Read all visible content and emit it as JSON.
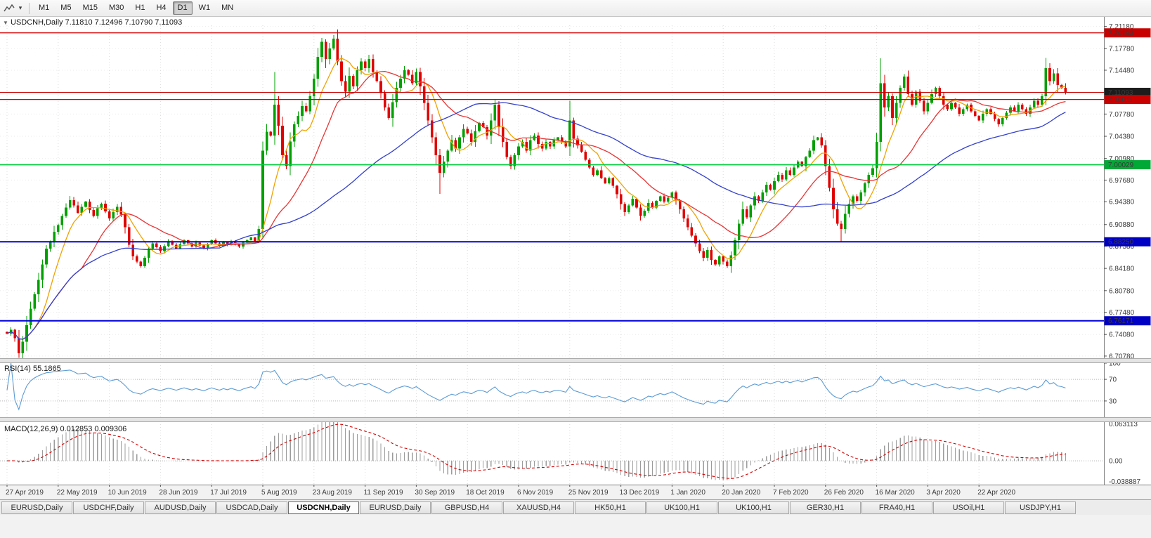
{
  "icons": {
    "expand_marker": "▼",
    "dropdown_caret": "▾"
  },
  "toolbar": {
    "timeframes": [
      "M1",
      "M5",
      "M15",
      "M30",
      "H1",
      "H4",
      "D1",
      "W1",
      "MN"
    ],
    "active_timeframe": "D1"
  },
  "chart": {
    "header_text": "USDCNH,Daily 7.11810 7.12496 7.10790 7.11093",
    "symbol": "USDCNH,Daily",
    "ohlc": {
      "open": "7.11810",
      "high": "7.12496",
      "low": "7.10790",
      "close": "7.11093"
    },
    "rsi_label_text": "RSI(14) 55.1865",
    "macd_label_text": "MACD(12,26,9) 0.012853 0.009306"
  },
  "chart_data": {
    "type": "candlestick",
    "symbol": "USDCNH",
    "timeframe": "Daily",
    "price_range": [
      6.7045,
      7.2135
    ],
    "first_open": 6.745,
    "closes": [
      6.742,
      6.748,
      6.735,
      6.712,
      6.73,
      6.755,
      6.78,
      6.802,
      6.824,
      6.848,
      6.872,
      6.882,
      6.898,
      6.908,
      6.922,
      6.935,
      6.946,
      6.938,
      6.927,
      6.936,
      6.944,
      6.931,
      6.922,
      6.934,
      6.941,
      6.929,
      6.918,
      6.928,
      6.936,
      6.924,
      6.905,
      6.878,
      6.86,
      6.852,
      6.845,
      6.858,
      6.872,
      6.88,
      6.874,
      6.868,
      6.876,
      6.883,
      6.878,
      6.872,
      6.879,
      6.885,
      6.88,
      6.875,
      6.881,
      6.877,
      6.872,
      6.879,
      6.885,
      6.88,
      6.876,
      6.882,
      6.878,
      6.883,
      6.879,
      6.875,
      6.881,
      6.885,
      6.889,
      6.884,
      6.902,
      7.022,
      7.051,
      7.045,
      7.092,
      7.06,
      7.015,
      6.998,
      7.036,
      7.062,
      7.075,
      7.09,
      7.082,
      7.105,
      7.132,
      7.165,
      7.188,
      7.162,
      7.178,
      7.193,
      7.158,
      7.128,
      7.112,
      7.136,
      7.12,
      7.145,
      7.158,
      7.148,
      7.162,
      7.142,
      7.128,
      7.11,
      7.088,
      7.072,
      7.096,
      7.118,
      7.132,
      7.145,
      7.138,
      7.125,
      7.142,
      7.12,
      7.095,
      7.068,
      7.042,
      7.015,
      6.988,
      7.005,
      7.022,
      7.038,
      7.025,
      7.042,
      7.055,
      7.048,
      7.035,
      7.052,
      7.064,
      7.058,
      7.045,
      7.068,
      7.092,
      7.058,
      7.035,
      7.012,
      6.998,
      7.015,
      7.028,
      7.035,
      7.022,
      7.038,
      7.045,
      7.032,
      7.025,
      7.035,
      7.028,
      7.038,
      7.042,
      7.035,
      7.028,
      7.068,
      7.04,
      7.03,
      7.02,
      7.008,
      6.996,
      6.985,
      6.992,
      6.98,
      6.972,
      6.98,
      6.968,
      6.955,
      6.94,
      6.928,
      6.938,
      6.948,
      6.935,
      6.922,
      6.93,
      6.942,
      6.935,
      6.945,
      6.952,
      6.944,
      6.95,
      6.958,
      6.946,
      6.932,
      6.918,
      6.905,
      6.892,
      6.88,
      6.868,
      6.858,
      6.87,
      6.855,
      6.848,
      6.86,
      6.852,
      6.845,
      6.862,
      6.885,
      6.91,
      6.932,
      6.92,
      6.938,
      6.952,
      6.945,
      6.958,
      6.97,
      6.962,
      6.975,
      6.985,
      6.978,
      6.992,
      6.985,
      6.996,
      7.005,
      6.998,
      7.012,
      7.022,
      7.038,
      7.042,
      7.03,
      6.998,
      6.965,
      6.932,
      6.91,
      6.902,
      6.925,
      6.94,
      6.952,
      6.945,
      6.958,
      6.972,
      6.985,
      6.995,
      7.035,
      7.125,
      7.088,
      7.105,
      7.072,
      7.095,
      7.118,
      7.135,
      7.108,
      7.092,
      7.112,
      7.098,
      7.082,
      7.095,
      7.108,
      7.118,
      7.105,
      7.092,
      7.085,
      7.095,
      7.088,
      7.078,
      7.085,
      7.092,
      7.082,
      7.075,
      7.068,
      7.078,
      7.085,
      7.078,
      7.07,
      7.062,
      7.072,
      7.08,
      7.088,
      7.082,
      7.092,
      7.085,
      7.078,
      7.088,
      7.098,
      7.092,
      7.105,
      7.148,
      7.128,
      7.14,
      7.122,
      7.118,
      7.1109
    ],
    "high_overrides": {
      "68": 7.142,
      "83": 7.1985,
      "143": 7.098,
      "222": 7.163,
      "264": 7.1635,
      "269": 7.12496
    },
    "low_overrides": {
      "3": 6.705,
      "110": 6.956,
      "183": 6.8425,
      "212": 6.882,
      "269": 7.1079
    },
    "x_labels": [
      "27 Apr 2019",
      "22 May 2019",
      "10 Jun 2019",
      "28 Jun 2019",
      "17 Jul 2019",
      "5 Aug 2019",
      "23 Aug 2019",
      "11 Sep 2019",
      "30 Sep 2019",
      "18 Oct 2019",
      "6 Nov 2019",
      "25 Nov 2019",
      "13 Dec 2019",
      "1 Jan 2020",
      "20 Jan 2020",
      "7 Feb 2020",
      "26 Feb 2020",
      "16 Mar 2020",
      "3 Apr 2020",
      "22 Apr 2020"
    ],
    "label_every": 13,
    "y_ticks": [
      7.2118,
      7.1778,
      7.1448,
      7.1108,
      7.0778,
      7.0438,
      7.0098,
      6.9768,
      6.9438,
      6.9088,
      6.8758,
      6.8418,
      6.8078,
      6.7748,
      6.7408,
      6.7078
    ],
    "y_tick_labels": [
      "7.21180",
      "7.17780",
      "7.14480",
      "7.11080",
      "7.07780",
      "7.04380",
      "7.00980",
      "6.97680",
      "6.94380",
      "6.90880",
      "6.87580",
      "6.84180",
      "6.80780",
      "6.77480",
      "6.74080",
      "6.70780"
    ],
    "hlines": [
      {
        "price": 7.20193,
        "label": "7.20193",
        "line_color": "#d40000",
        "tag_bg": "#c80000",
        "width": 1.3
      },
      {
        "price": 7.11093,
        "label": "7.11093",
        "line_color": "#c80000",
        "tag_bg": "#1c1c1c",
        "width": 1.0,
        "is_current": true
      },
      {
        "price": 7.10011,
        "label": "7.10011",
        "line_color": "#d40000",
        "tag_bg": "#c80000",
        "width": 1.3
      },
      {
        "price": 7.00029,
        "label": "7.00029",
        "line_color": "#00ca3c",
        "tag_bg": "#00a835",
        "width": 1.6
      },
      {
        "price": 6.8825,
        "label": "6.88250",
        "line_color": "#0000d8",
        "tag_bg": "#0000c4",
        "width": 2.0
      },
      {
        "price": 6.76171,
        "label": "6.76171",
        "line_color": "#0000d8",
        "tag_bg": "#0000c4",
        "width": 2.0
      }
    ],
    "moving_averages": [
      {
        "name": "sma-fast",
        "period": 8,
        "color": "#f0a200"
      },
      {
        "name": "sma-mid",
        "period": 20,
        "color": "#e83434"
      },
      {
        "name": "sma-slow",
        "period": 55,
        "color": "#3340cc"
      }
    ],
    "candle_up_color": "#00a000",
    "candle_down_color": "#e00000",
    "indicators": {
      "rsi": {
        "label": "RSI(14)",
        "period": 14,
        "current_value": "55.1865",
        "levels": [
          100,
          70,
          30
        ],
        "line_color": "#5b9bd5"
      },
      "macd": {
        "label": "MACD(12,26,9)",
        "fast": 12,
        "slow": 26,
        "signal": 9,
        "value_main": "0.012853",
        "value_signal": "0.009306",
        "scale_labels": [
          "0.063113",
          "0.00",
          "-0.038887"
        ],
        "scale_range": [
          0.063113,
          -0.038887
        ],
        "hist_color": "#9c9c9c",
        "signal_color": "#d40000"
      }
    }
  },
  "tabs": {
    "items": [
      {
        "label": "EURUSD,Daily",
        "active": false
      },
      {
        "label": "USDCHF,Daily",
        "active": false
      },
      {
        "label": "AUDUSD,Daily",
        "active": false
      },
      {
        "label": "USDCAD,Daily",
        "active": false
      },
      {
        "label": "USDCNH,Daily",
        "active": true
      },
      {
        "label": "EURUSD,Daily",
        "active": false
      },
      {
        "label": "GBPUSD,H4",
        "active": false
      },
      {
        "label": "XAUUSD,H4",
        "active": false
      },
      {
        "label": "HK50,H1",
        "active": false
      },
      {
        "label": "UK100,H1",
        "active": false
      },
      {
        "label": "UK100,H1",
        "active": false
      },
      {
        "label": "GER30,H1",
        "active": false
      },
      {
        "label": "FRA40,H1",
        "active": false
      },
      {
        "label": "USOil,H1",
        "active": false
      },
      {
        "label": "USDJPY,H1",
        "active": false
      }
    ]
  }
}
